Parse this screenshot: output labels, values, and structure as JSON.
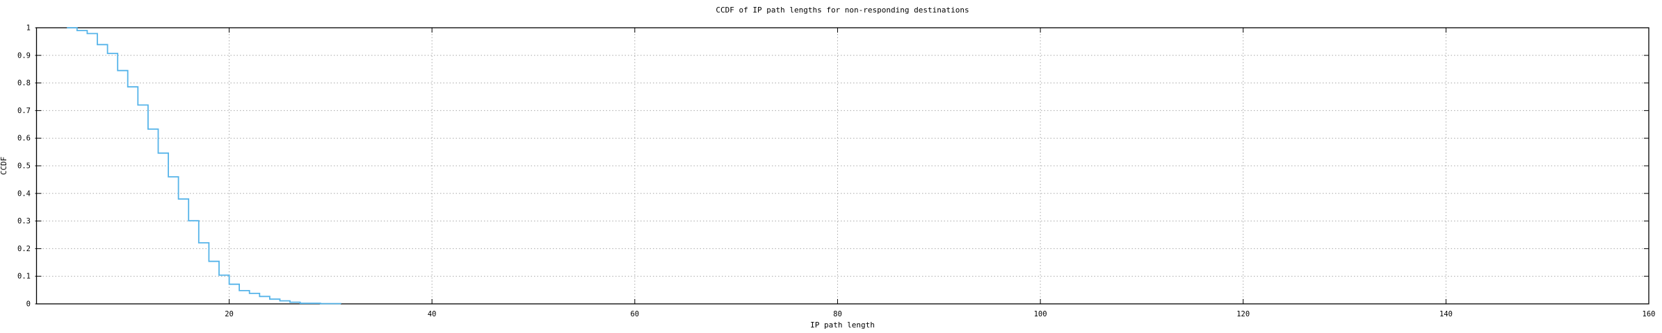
{
  "chart": {
    "title": "CCDF of IP path lengths for non-responding destinations",
    "xlabel": "IP path length",
    "ylabel": "CCDF"
  },
  "chart_data": {
    "type": "line",
    "line_style": "steps",
    "title": "CCDF of IP path lengths for non-responding destinations",
    "xlabel": "IP path length",
    "ylabel": "CCDF",
    "xlim": [
      1,
      160
    ],
    "ylim": [
      0,
      1
    ],
    "x_ticks": [
      20,
      40,
      60,
      80,
      100,
      120,
      140,
      160
    ],
    "y_ticks": [
      0,
      0.1,
      0.2,
      0.3,
      0.4,
      0.5,
      0.6,
      0.7,
      0.8,
      0.9,
      1
    ],
    "grid": true,
    "legend_position": "none",
    "colors": {
      "curve": "#56b4e9",
      "grid": "#a8a8a8",
      "axis": "#000000",
      "background": "#ffffff",
      "text": "#000000"
    },
    "series": [
      {
        "name": "CCDF of IP path lengths",
        "color": "#56b4e9",
        "points": [
          [
            4,
            1.0
          ],
          [
            5,
            0.99
          ],
          [
            6,
            0.979
          ],
          [
            7,
            0.939
          ],
          [
            8,
            0.907
          ],
          [
            9,
            0.845
          ],
          [
            10,
            0.786
          ],
          [
            11,
            0.72
          ],
          [
            12,
            0.633
          ],
          [
            13,
            0.546
          ],
          [
            14,
            0.46
          ],
          [
            15,
            0.38
          ],
          [
            16,
            0.301
          ],
          [
            17,
            0.221
          ],
          [
            18,
            0.154
          ],
          [
            19,
            0.104
          ],
          [
            20,
            0.071
          ],
          [
            21,
            0.048
          ],
          [
            22,
            0.038
          ],
          [
            23,
            0.027
          ],
          [
            24,
            0.017
          ],
          [
            25,
            0.011
          ],
          [
            26,
            0.006
          ],
          [
            27,
            0.002
          ],
          [
            29,
            0.001
          ],
          [
            31,
            0.0
          ]
        ]
      }
    ]
  }
}
